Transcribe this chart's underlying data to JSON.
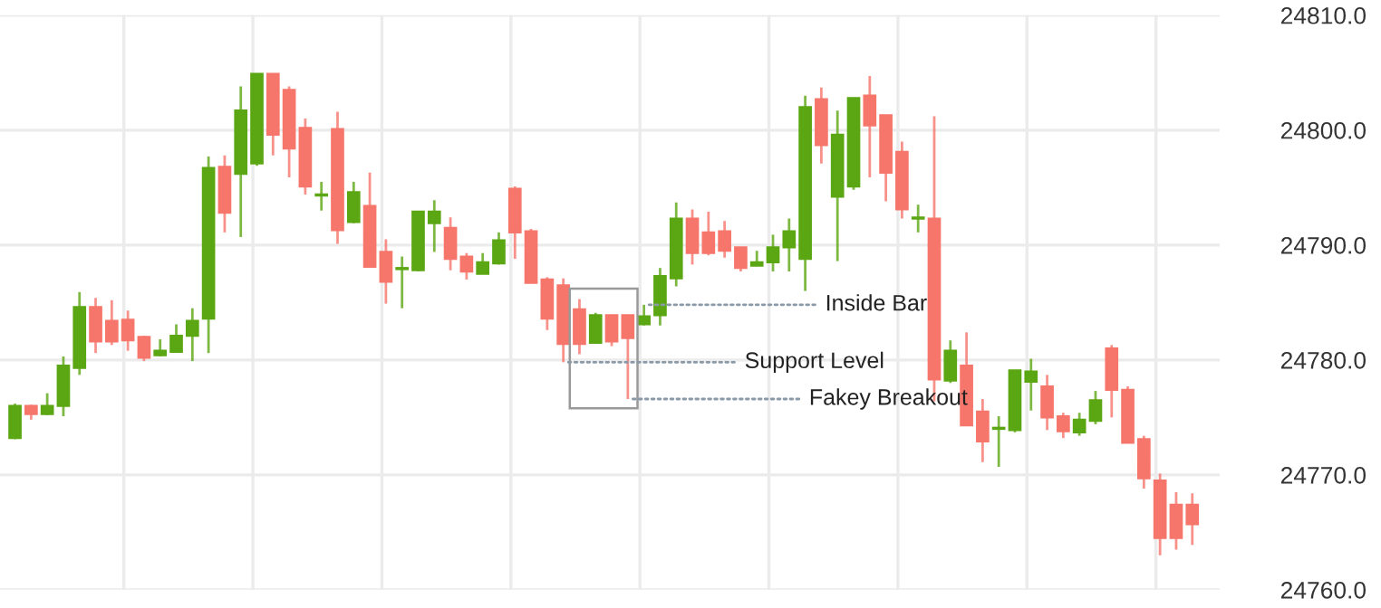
{
  "chart_data": {
    "type": "candlestick",
    "categories": [
      null,
      null,
      null,
      null,
      null,
      null,
      null,
      null,
      null,
      null,
      null,
      null,
      null,
      null,
      null,
      null,
      null,
      null,
      null,
      null,
      null,
      null,
      null,
      null,
      null,
      null,
      null,
      null,
      null,
      null,
      null,
      null,
      null,
      null,
      null,
      null,
      null,
      null,
      null,
      null,
      null,
      null,
      null,
      null,
      null,
      null,
      null,
      null,
      null,
      null,
      null,
      null,
      null,
      null,
      null,
      null,
      null,
      null,
      null,
      null,
      null,
      null,
      null,
      null,
      null,
      null,
      null,
      null,
      null,
      null,
      null,
      null,
      null,
      null
    ],
    "ohlc": [
      [
        24773.2,
        24776.2,
        24773.1,
        24776.0
      ],
      [
        24776.0,
        24776.1,
        24774.8,
        24775.3
      ],
      [
        24775.3,
        24777.1,
        24775.2,
        24776.0
      ],
      [
        24776.0,
        24780.3,
        24775.1,
        24779.5
      ],
      [
        24779.3,
        24785.9,
        24778.7,
        24784.6
      ],
      [
        24784.6,
        24785.4,
        24780.6,
        24781.6
      ],
      [
        24783.4,
        24785.2,
        24781.3,
        24781.6
      ],
      [
        24783.5,
        24784.3,
        24780.8,
        24781.7
      ],
      [
        24782.0,
        24782.1,
        24779.9,
        24780.2
      ],
      [
        24780.4,
        24781.8,
        24780.3,
        24780.8
      ],
      [
        24780.7,
        24783.1,
        24780.7,
        24782.1
      ],
      [
        24782.1,
        24784.5,
        24779.9,
        24783.4
      ],
      [
        24783.6,
        24797.7,
        24780.6,
        24796.7
      ],
      [
        24796.8,
        24797.8,
        24791.1,
        24792.8
      ],
      [
        24796.2,
        24803.8,
        24790.7,
        24801.7
      ],
      [
        24797.1,
        24804.9,
        24796.9,
        24804.9
      ],
      [
        24804.9,
        24804.9,
        24797.8,
        24799.6
      ],
      [
        24803.5,
        24803.8,
        24795.9,
        24798.4
      ],
      [
        24800.2,
        24801.0,
        24794.4,
        24795.1
      ],
      [
        24794.3,
        24795.5,
        24793.0,
        24794.4
      ],
      [
        24800.1,
        24801.6,
        24790.1,
        24791.3
      ],
      [
        24792.0,
        24795.5,
        24791.9,
        24794.6
      ],
      [
        24793.4,
        24796.3,
        24788.1,
        24788.1
      ],
      [
        24789.4,
        24790.5,
        24784.9,
        24786.8
      ],
      [
        24787.9,
        24789.0,
        24784.5,
        24788.0
      ],
      [
        24787.8,
        24792.9,
        24787.7,
        24792.9
      ],
      [
        24791.9,
        24793.9,
        24789.4,
        24792.9
      ],
      [
        24791.5,
        24792.4,
        24787.8,
        24788.8
      ],
      [
        24789.0,
        24789.3,
        24787.0,
        24787.7
      ],
      [
        24787.5,
        24789.3,
        24787.5,
        24788.5
      ],
      [
        24788.4,
        24791.1,
        24788.3,
        24790.4
      ],
      [
        24794.9,
        24795.1,
        24788.8,
        24791.1
      ],
      [
        24791.2,
        24791.4,
        24786.7,
        24786.7
      ],
      [
        24787.0,
        24787.2,
        24782.6,
        24783.6
      ],
      [
        24786.5,
        24787.1,
        24779.8,
        24781.4
      ],
      [
        24784.4,
        24785.3,
        24780.5,
        24781.4
      ],
      [
        24781.5,
        24784.1,
        24781.5,
        24783.9
      ],
      [
        24783.9,
        24783.9,
        24781.2,
        24781.6
      ],
      [
        24783.9,
        24783.9,
        24776.6,
        24781.9
      ],
      [
        24783.1,
        24784.8,
        24783.0,
        24783.8
      ],
      [
        24783.9,
        24788.0,
        24783.0,
        24787.3
      ],
      [
        24787.1,
        24793.7,
        24786.4,
        24792.3
      ],
      [
        24792.3,
        24793.1,
        24788.3,
        24789.3
      ],
      [
        24791.1,
        24792.9,
        24789.1,
        24789.3
      ],
      [
        24791.2,
        24792.1,
        24788.9,
        24789.5
      ],
      [
        24789.8,
        24789.8,
        24787.7,
        24788.0
      ],
      [
        24788.2,
        24789.5,
        24788.2,
        24788.5
      ],
      [
        24788.5,
        24790.9,
        24787.7,
        24789.8
      ],
      [
        24789.8,
        24792.3,
        24787.7,
        24791.2
      ],
      [
        24788.8,
        24803.0,
        24786.0,
        24802.0
      ],
      [
        24802.7,
        24803.7,
        24797.1,
        24798.7
      ],
      [
        24794.2,
        24801.7,
        24788.6,
        24799.6
      ],
      [
        24795.1,
        24802.8,
        24794.8,
        24802.8
      ],
      [
        24803.0,
        24804.7,
        24795.9,
        24800.4
      ],
      [
        24801.3,
        24801.3,
        24793.8,
        24796.3
      ],
      [
        24798.1,
        24799.0,
        24792.3,
        24793.1
      ],
      [
        24792.3,
        24793.5,
        24791.1,
        24792.4
      ],
      [
        24792.3,
        24801.2,
        24776.4,
        24778.3
      ],
      [
        24778.2,
        24781.7,
        24778.0,
        24780.8
      ],
      [
        24779.5,
        24782.4,
        24774.3,
        24774.3
      ],
      [
        24775.5,
        24776.6,
        24771.1,
        24772.9
      ],
      [
        24774.0,
        24775.1,
        24770.7,
        24774.1
      ],
      [
        24773.9,
        24779.1,
        24773.7,
        24779.1
      ],
      [
        24778.1,
        24780.1,
        24775.6,
        24779.0
      ],
      [
        24777.7,
        24778.7,
        24773.9,
        24775.0
      ],
      [
        24775.1,
        24775.4,
        24773.2,
        24773.8
      ],
      [
        24773.7,
        24775.4,
        24773.4,
        24774.8
      ],
      [
        24774.7,
        24777.3,
        24774.4,
        24776.5
      ],
      [
        24781.0,
        24781.3,
        24775.0,
        24777.4
      ],
      [
        24777.4,
        24777.7,
        24772.8,
        24772.8
      ],
      [
        24773.1,
        24773.4,
        24768.8,
        24769.7
      ],
      [
        24769.5,
        24770.1,
        24763.0,
        24764.5
      ],
      [
        24767.4,
        24768.5,
        24763.5,
        24764.5
      ],
      [
        24767.4,
        24768.4,
        24763.9,
        24765.7
      ]
    ],
    "colors": [
      "#5ba613",
      "#f6766b",
      "#5ba613",
      "#5ba613",
      "#5ba613",
      "#f6766b",
      "#f6766b",
      "#f6766b",
      "#f6766b",
      "#5ba613",
      "#5ba613",
      "#5ba613",
      "#5ba613",
      "#f6766b",
      "#5ba613",
      "#5ba613",
      "#f6766b",
      "#f6766b",
      "#f6766b",
      "#5ba613",
      "#f6766b",
      "#5ba613",
      "#f6766b",
      "#f6766b",
      "#5ba613",
      "#5ba613",
      "#5ba613",
      "#f6766b",
      "#f6766b",
      "#5ba613",
      "#5ba613",
      "#f6766b",
      "#f6766b",
      "#f6766b",
      "#f6766b",
      "#f6766b",
      "#5ba613",
      "#f6766b",
      "#f6766b",
      "#5ba613",
      "#5ba613",
      "#5ba613",
      "#f6766b",
      "#f6766b",
      "#f6766b",
      "#f6766b",
      "#5ba613",
      "#5ba613",
      "#5ba613",
      "#5ba613",
      "#f6766b",
      "#5ba613",
      "#5ba613",
      "#f6766b",
      "#f6766b",
      "#f6766b",
      "#5ba613",
      "#f6766b",
      "#5ba613",
      "#f6766b",
      "#f6766b",
      "#5ba613",
      "#5ba613",
      "#5ba613",
      "#f6766b",
      "#f6766b",
      "#5ba613",
      "#5ba613",
      "#f6766b",
      "#f6766b",
      "#f6766b",
      "#f6766b",
      "#f6766b",
      "#f6766b"
    ],
    "ylim": [
      24760,
      24810
    ],
    "yticks": [
      {
        "value": 24760,
        "label": "24760.0"
      },
      {
        "value": 24770,
        "label": "24770.0"
      },
      {
        "value": 24780,
        "label": "24780.0"
      },
      {
        "value": 24790,
        "label": "24790.0"
      },
      {
        "value": 24800,
        "label": "24800.0"
      },
      {
        "value": 24810,
        "label": "24810.0"
      }
    ],
    "tick_labels": "y",
    "grid": true,
    "annotations": [
      "Inside Bar",
      "Support Level",
      "Fakey Breakout"
    ]
  }
}
